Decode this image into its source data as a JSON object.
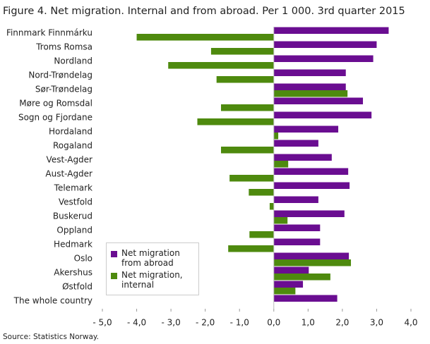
{
  "chart_data": {
    "type": "bar",
    "orientation": "horizontal",
    "title": "Figure 4. Net migration. Internal and from abroad. Per 1 000. 3rd quarter 2015",
    "source": "Source: Statistics Norway.",
    "categories": [
      "Finnmark Finnmárku",
      "Troms Romsa",
      "Nordland",
      "Nord-Trøndelag",
      "Sør-Trøndelag",
      "Møre og Romsdal",
      "Sogn og Fjordane",
      "Hordaland",
      "Rogaland",
      "Vest-Agder",
      "Aust-Agder",
      "Telemark",
      "Vestfold",
      "Buskerud",
      "Oppland",
      "Hedmark",
      "Oslo",
      "Akershus",
      "Østfold",
      "The whole country"
    ],
    "series": [
      {
        "name": "Net migration from abroad",
        "color": "#6a0d91",
        "values": [
          3.35,
          3.0,
          2.9,
          2.1,
          2.1,
          2.6,
          2.85,
          1.88,
          1.3,
          1.69,
          2.17,
          2.21,
          1.3,
          2.06,
          1.35,
          1.35,
          2.19,
          1.02,
          0.85,
          1.85
        ]
      },
      {
        "name": "Net migration, internal",
        "color": "#4e8a0e",
        "values": [
          -4.0,
          -1.83,
          -3.08,
          -1.67,
          2.15,
          -1.54,
          -2.23,
          0.13,
          -1.54,
          0.42,
          -1.29,
          -0.73,
          -0.12,
          0.4,
          -0.71,
          -1.33,
          2.25,
          1.65,
          0.63,
          null
        ]
      }
    ],
    "xlim": [
      -5,
      4
    ],
    "xticks": [
      {
        "value": -5,
        "label": "- 5,0"
      },
      {
        "value": -4,
        "label": "- 4,0"
      },
      {
        "value": -3,
        "label": "- 3,0"
      },
      {
        "value": -2,
        "label": "- 2,0"
      },
      {
        "value": -1,
        "label": "- 1,0"
      },
      {
        "value": 0,
        "label": "0,0"
      },
      {
        "value": 1,
        "label": "1,0"
      },
      {
        "value": 2,
        "label": "2,0"
      },
      {
        "value": 3,
        "label": "3,0"
      },
      {
        "value": 4,
        "label": "4,0"
      }
    ],
    "grid": false,
    "legend": "lower left"
  }
}
